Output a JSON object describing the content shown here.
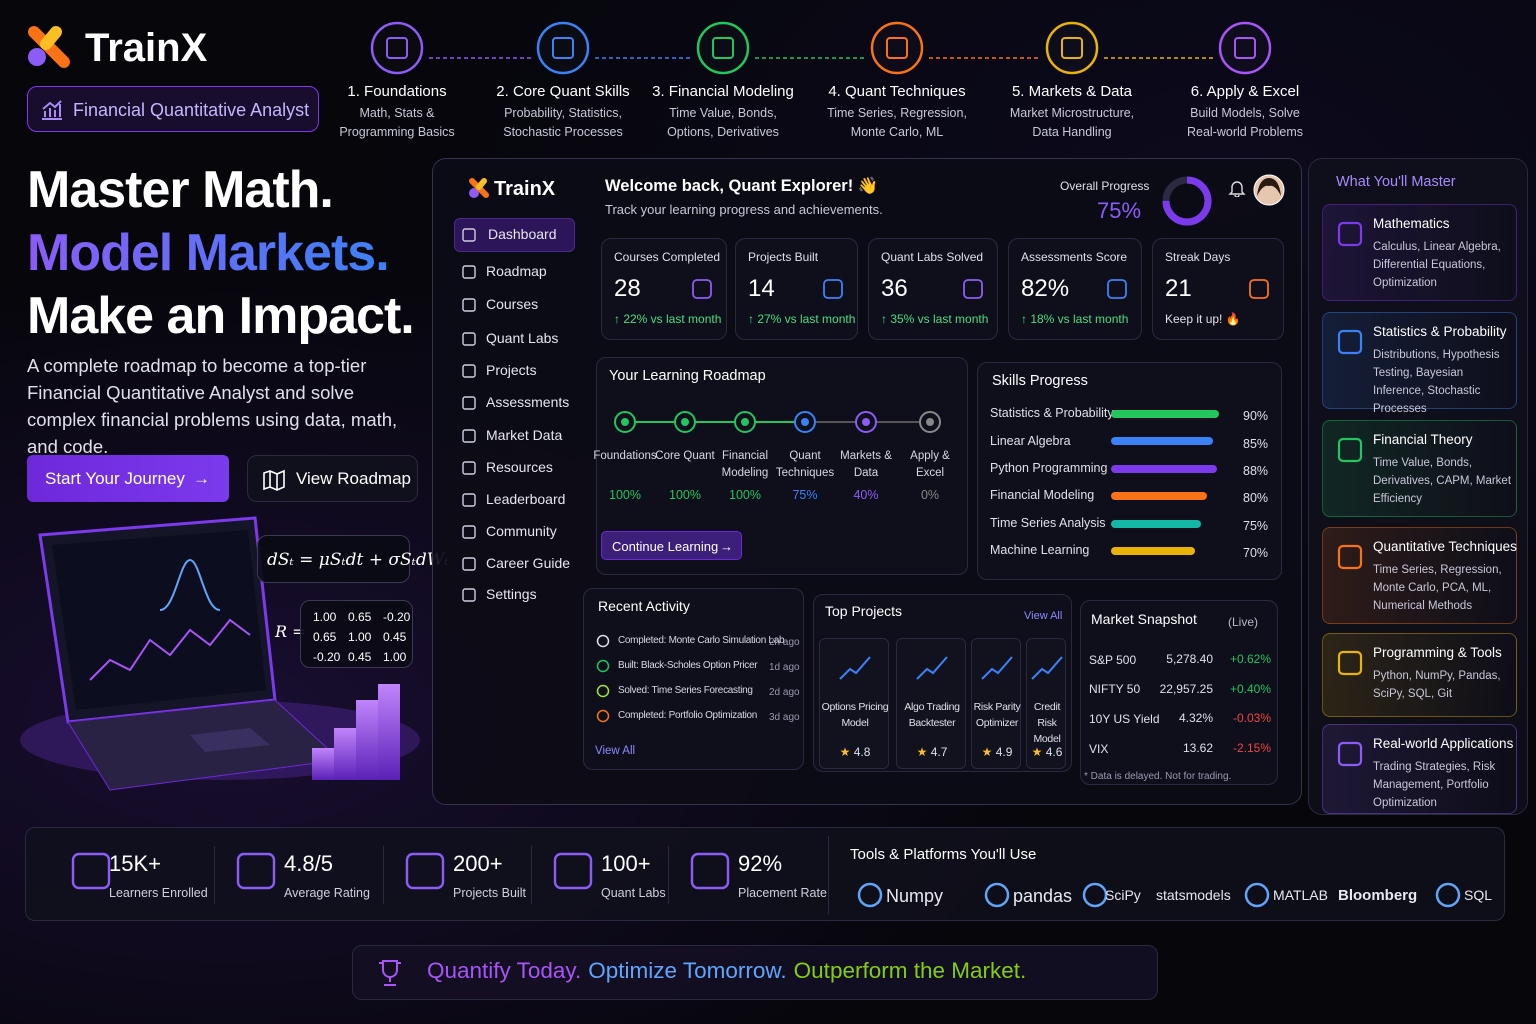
{
  "brand": {
    "name": "TrainX",
    "badge": "Financial Quantitative Analyst"
  },
  "steps": [
    {
      "title": "1. Foundations",
      "desc": [
        "Math, Stats &",
        "Programming Basics"
      ]
    },
    {
      "title": "2. Core Quant Skills",
      "desc": [
        "Probability, Statistics,",
        "Stochastic Processes"
      ]
    },
    {
      "title": "3. Financial Modeling",
      "desc": [
        "Time Value, Bonds,",
        "Options, Derivatives"
      ]
    },
    {
      "title": "4. Quant Techniques",
      "desc": [
        "Time Series, Regression,",
        "Monte Carlo, ML"
      ]
    },
    {
      "title": "5. Markets & Data",
      "desc": [
        "Market Microstructure,",
        "Data Handling"
      ]
    },
    {
      "title": "6. Apply & Excel",
      "desc": [
        "Build Models, Solve",
        "Real-world Problems"
      ]
    }
  ],
  "hero": {
    "lines": [
      "Master Math.",
      "Model Markets.",
      "Make an Impact."
    ],
    "text": "A complete roadmap to become a top-tier Financial Quantitative Analyst and solve complex financial problems using data, math, and code.",
    "buttons": [
      "Start Your Journey",
      "View Roadmap"
    ]
  },
  "formulas": {
    "sde": "dSₜ = μSₜdt + σSₜdWₜ",
    "matrix_label": "R =",
    "matrix": [
      [
        "1.00",
        "0.65",
        "-0.20"
      ],
      [
        "0.65",
        "1.00",
        "0.45"
      ],
      [
        "-0.20",
        "0.45",
        "1.00"
      ]
    ]
  },
  "dashboard": {
    "brand": "TrainX",
    "nav": [
      "Dashboard",
      "Roadmap",
      "Courses",
      "Quant Labs",
      "Projects",
      "Assessments",
      "Market Data",
      "Resources",
      "Leaderboard",
      "Community",
      "Career Guide",
      "Settings"
    ],
    "welcome": "Welcome back, Quant Explorer! 👋",
    "subtitle": "Track your learning progress and achievements.",
    "overall": {
      "label": "Overall Progress",
      "value": 75,
      "value_label": "75%"
    },
    "stats": [
      {
        "label": "Courses Completed",
        "value": "28",
        "change": "↑ 22% vs last month"
      },
      {
        "label": "Projects Built",
        "value": "14",
        "change": "↑ 27% vs last month"
      },
      {
        "label": "Quant Labs Solved",
        "value": "36",
        "change": "↑ 35% vs last month"
      },
      {
        "label": "Assessments Score",
        "value": "82%",
        "change": "↑ 18% vs last month"
      },
      {
        "label": "Streak Days",
        "value": "21",
        "change": "Keep it up! 🔥"
      }
    ],
    "roadmap": {
      "title": "Your Learning Roadmap",
      "stages": [
        {
          "name": "Foundations",
          "progress": "100%"
        },
        {
          "name": "Core Quant",
          "progress": "100%"
        },
        {
          "name": "Financial Modeling",
          "progress": "100%"
        },
        {
          "name": "Quant Techniques",
          "progress": "75%"
        },
        {
          "name": "Markets & Data",
          "progress": "40%"
        },
        {
          "name": "Apply & Excel",
          "progress": "0%"
        }
      ],
      "button": "Continue Learning"
    },
    "skills": {
      "title": "Skills Progress",
      "items": [
        {
          "name": "Statistics & Probability",
          "value": 90,
          "label": "90%",
          "color": "#22c55e"
        },
        {
          "name": "Linear Algebra",
          "value": 85,
          "label": "85%",
          "color": "#3b82f6"
        },
        {
          "name": "Python Programming",
          "value": 88,
          "label": "88%",
          "color": "#7c3aed"
        },
        {
          "name": "Financial Modeling",
          "value": 80,
          "label": "80%",
          "color": "#f97316"
        },
        {
          "name": "Time Series Analysis",
          "value": 75,
          "label": "75%",
          "color": "#14b8a6"
        },
        {
          "name": "Machine Learning",
          "value": 70,
          "label": "70%",
          "color": "#eab308"
        }
      ]
    },
    "activity": {
      "title": "Recent Activity",
      "items": [
        {
          "text": "Completed: Monte Carlo Simulation Lab",
          "time": "2h ago"
        },
        {
          "text": "Built: Black-Scholes Option Pricer",
          "time": "1d ago"
        },
        {
          "text": "Solved: Time Series Forecasting",
          "time": "2d ago"
        },
        {
          "text": "Completed: Portfolio Optimization",
          "time": "3d ago"
        }
      ],
      "link": "View All"
    },
    "projects": {
      "title": "Top Projects",
      "link": "View All",
      "items": [
        {
          "name": "Options Pricing Model",
          "rating": "4.8"
        },
        {
          "name": "Algo Trading Backtester",
          "rating": "4.7"
        },
        {
          "name": "Risk Parity Optimizer",
          "rating": "4.9"
        },
        {
          "name": "Credit Risk Model",
          "rating": "4.6"
        }
      ]
    },
    "market": {
      "title": "Market Snapshot",
      "live": "(Live)",
      "rows": [
        [
          "S&P 500",
          "5,278.40",
          "+0.62%"
        ],
        [
          "NIFTY 50",
          "22,957.25",
          "+0.40%"
        ],
        [
          "10Y US Yield",
          "4.32%",
          "-0.03%"
        ],
        [
          "VIX",
          "13.62",
          "-2.15%"
        ]
      ],
      "note": "* Data is delayed. Not for trading."
    }
  },
  "master": {
    "title": "What You'll Master",
    "items": [
      {
        "title": "Mathematics",
        "desc": "Calculus, Linear Algebra, Differential Equations, Optimization"
      },
      {
        "title": "Statistics & Probability",
        "desc": "Distributions, Hypothesis Testing, Bayesian Inference, Stochastic Processes"
      },
      {
        "title": "Financial Theory",
        "desc": "Time Value, Bonds, Derivatives, CAPM, Market Efficiency"
      },
      {
        "title": "Quantitative Techniques",
        "desc": "Time Series, Regression, Monte Carlo, PCA, ML, Numerical Methods"
      },
      {
        "title": "Programming & Tools",
        "desc": "Python, NumPy, Pandas, SciPy, SQL, Git"
      },
      {
        "title": "Real-world Applications",
        "desc": "Trading Strategies, Risk Management, Portfolio Optimization"
      }
    ]
  },
  "stats_bar": [
    {
      "value": "15K+",
      "label": "Learners Enrolled"
    },
    {
      "value": "4.8/5",
      "label": "Average Rating"
    },
    {
      "value": "200+",
      "label": "Projects Built"
    },
    {
      "value": "100+",
      "label": "Quant Labs"
    },
    {
      "value": "92%",
      "label": "Placement Rate"
    }
  ],
  "tools": {
    "title": "Tools & Platforms You'll Use",
    "items": [
      "Numpy",
      "pandas",
      "SciPy",
      "statsmodels",
      "MATLAB",
      "Bloomberg",
      "SQL"
    ]
  },
  "tagline": [
    "Quantify Today.",
    "Optimize Tomorrow.",
    "Outperform the Market."
  ]
}
